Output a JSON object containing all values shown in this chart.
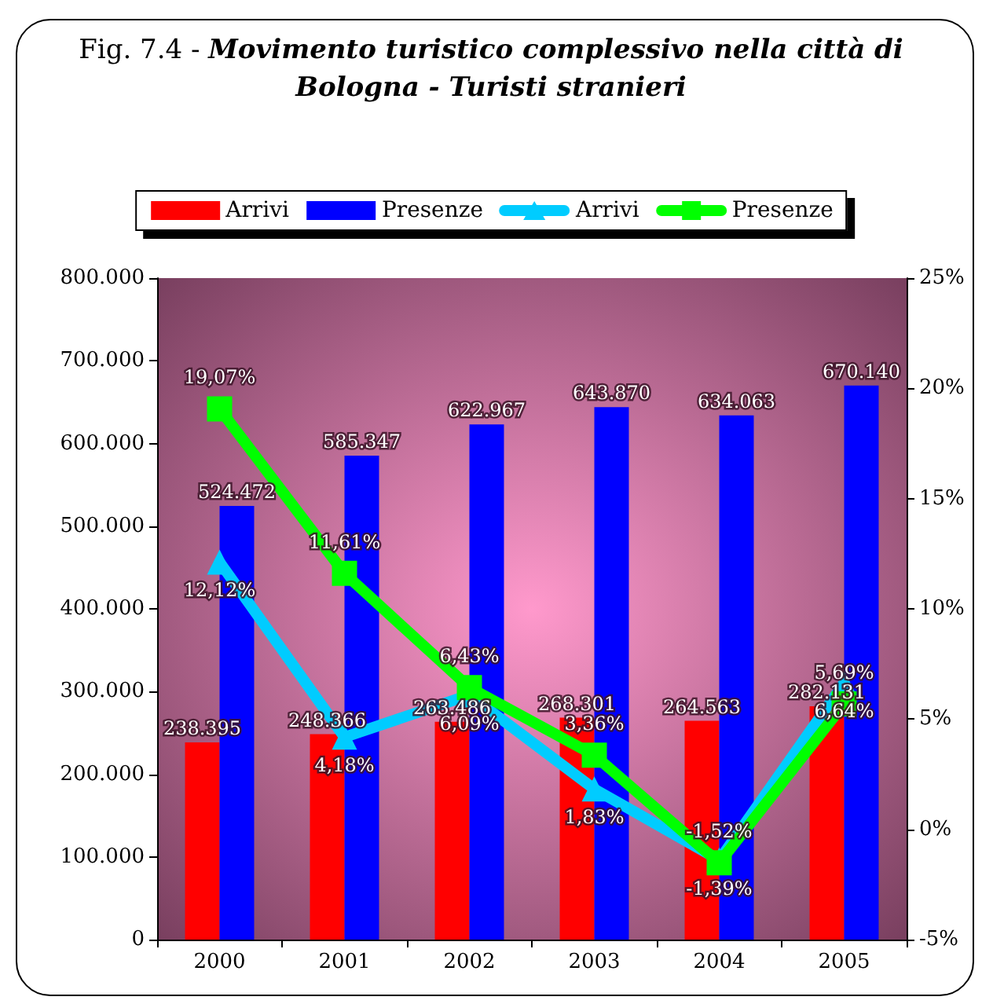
{
  "chart_data": {
    "type": "bar",
    "title": "Fig. 7.4 - Movimento turistico complessivo nella città di Bologna - Turisti stranieri",
    "categories": [
      "2000",
      "2001",
      "2002",
      "2003",
      "2004",
      "2005"
    ],
    "series": [
      {
        "name": "Arrivi",
        "color": "#ff0000",
        "values": [
          238395,
          248366,
          263486,
          268301,
          264563,
          282131
        ],
        "value_labels": [
          "238.395",
          "248.366",
          "263.486",
          "268.301",
          "264.563",
          "282.131"
        ]
      },
      {
        "name": "Presenze",
        "color": "#0000ff",
        "values": [
          524472,
          585347,
          622967,
          643870,
          634063,
          670140
        ],
        "value_labels": [
          "524.472",
          "585.347",
          "622.967",
          "643.870",
          "634.063",
          "670.140"
        ]
      },
      {
        "name": "Arrivi",
        "type": "line",
        "axis": "y2",
        "marker": "triangle",
        "color": "#00ccff",
        "values": [
          12.12,
          4.18,
          6.09,
          1.83,
          -1.39,
          6.64
        ],
        "value_labels": [
          "12,12%",
          "4,18%",
          "6,09%",
          "1,83%",
          "-1,39%",
          "6,64%"
        ]
      },
      {
        "name": "Presenze",
        "type": "line",
        "axis": "y2",
        "marker": "square",
        "color": "#00ff00",
        "values": [
          19.07,
          11.61,
          6.43,
          3.36,
          -1.52,
          5.69
        ],
        "value_labels": [
          "19,07%",
          "11,61%",
          "6,43%",
          "3,36%",
          "-1,52%",
          "5,69%"
        ]
      }
    ],
    "ylim": [
      0,
      800000
    ],
    "yticks": [
      {
        "value": 0,
        "label": "0"
      },
      {
        "value": 100000,
        "label": "100.000"
      },
      {
        "value": 200000,
        "label": "200.000"
      },
      {
        "value": 300000,
        "label": "300.000"
      },
      {
        "value": 400000,
        "label": "400.000"
      },
      {
        "value": 500000,
        "label": "500.000"
      },
      {
        "value": 600000,
        "label": "600.000"
      },
      {
        "value": 700000,
        "label": "700.000"
      },
      {
        "value": 800000,
        "label": "800.000"
      }
    ],
    "y2lim": [
      -5,
      25
    ],
    "y2ticks": [
      {
        "value": -5,
        "label": "-5%"
      },
      {
        "value": 0,
        "label": "0%"
      },
      {
        "value": 5,
        "label": "5%"
      },
      {
        "value": 10,
        "label": "10%"
      },
      {
        "value": 15,
        "label": "15%"
      },
      {
        "value": 20,
        "label": "20%"
      },
      {
        "value": 25,
        "label": "25%"
      }
    ],
    "legend": "top",
    "grid": false
  }
}
